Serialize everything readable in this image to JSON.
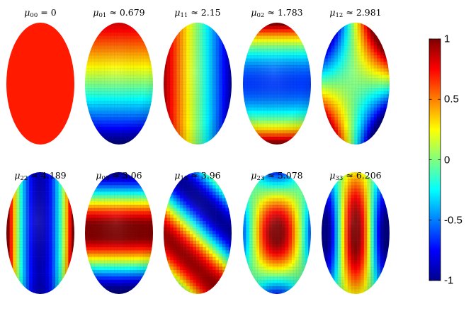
{
  "panels": [
    {
      "sym": "μ",
      "sub": "00",
      "rel": "=",
      "val": "0",
      "pattern": "const"
    },
    {
      "sym": "μ",
      "sub": "01",
      "rel": "≈",
      "val": "0.679",
      "pattern": "p01"
    },
    {
      "sym": "μ",
      "sub": "11",
      "rel": "≈",
      "val": "2.15",
      "pattern": "p11"
    },
    {
      "sym": "μ",
      "sub": "02",
      "rel": "≈",
      "val": "1.783",
      "pattern": "p02"
    },
    {
      "sym": "μ",
      "sub": "12",
      "rel": "≈",
      "val": "2.981",
      "pattern": "p12"
    },
    {
      "sym": "μ",
      "sub": "22",
      "rel": "≈",
      "val": "4.189",
      "pattern": "p22"
    },
    {
      "sym": "μ",
      "sub": "03",
      "rel": "≈",
      "val": "3.06",
      "pattern": "p03"
    },
    {
      "sym": "μ",
      "sub": "13",
      "rel": "≈",
      "val": "3.96",
      "pattern": "p13"
    },
    {
      "sym": "μ",
      "sub": "23",
      "rel": "≈",
      "val": "5.078",
      "pattern": "p23"
    },
    {
      "sym": "μ",
      "sub": "33",
      "rel": "≈",
      "val": "6.206",
      "pattern": "p33"
    }
  ],
  "colorbar": {
    "min": -1,
    "max": 1,
    "ticks": [
      {
        "value": 1,
        "label": "1"
      },
      {
        "value": 0.5,
        "label": "0.5"
      },
      {
        "value": 0,
        "label": "0"
      },
      {
        "value": -0.5,
        "label": "-0.5"
      },
      {
        "value": -1,
        "label": "-1"
      }
    ],
    "colormap": "jet"
  }
}
